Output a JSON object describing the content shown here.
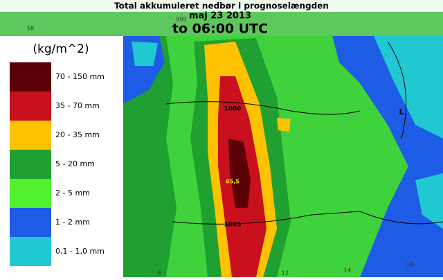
{
  "header": {
    "title": "Total akkumuleret nedbør i prognoselængden",
    "date": "maj 23 2013",
    "valid": "to 06:00 UTC"
  },
  "legend": {
    "unit": "(kg/m^2)",
    "items": [
      {
        "label": "70 - 150 mm",
        "color": "#5c0008"
      },
      {
        "label": "35 - 70 mm",
        "color": "#c8101e"
      },
      {
        "label": "20 - 35 mm",
        "color": "#ffc200"
      },
      {
        "label": "5 - 20 mm",
        "color": "#20a030"
      },
      {
        "label": "2 - 5 mm",
        "color": "#50f030"
      },
      {
        "label": "1 - 2 mm",
        "color": "#1e5ce6"
      },
      {
        "label": "0,1 - 1,0 mm",
        "color": "#20c8d2"
      }
    ]
  },
  "map": {
    "labels": [
      "1000",
      "65,5",
      "1005",
      "L",
      "995",
      "58"
    ],
    "longitudes": [
      "8",
      "12",
      "14",
      "16"
    ]
  }
}
